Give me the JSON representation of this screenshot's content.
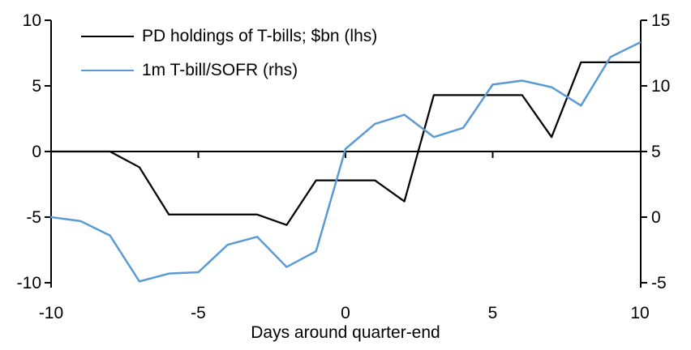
{
  "chart": {
    "background": "#ffffff",
    "axis_color": "#000000",
    "text_color": "#000000"
  },
  "chart_data": {
    "type": "line",
    "title": "",
    "xlabel": "Days around quarter-end",
    "x": [
      -10,
      -9,
      -8,
      -7,
      -6,
      -5,
      -4,
      -3,
      -2,
      -1,
      0,
      1,
      2,
      3,
      4,
      5,
      6,
      7,
      8,
      9,
      10
    ],
    "series": [
      {
        "name": "PD holdings of T-bills; $bn (lhs)",
        "axis": "left",
        "color": "#000000",
        "values": [
          0,
          0,
          0,
          -1.2,
          -4.8,
          -4.8,
          -4.8,
          -4.8,
          -5.6,
          -2.2,
          -2.2,
          -2.2,
          -3.8,
          4.3,
          4.3,
          4.3,
          4.3,
          1.1,
          6.8,
          6.8,
          6.8
        ]
      },
      {
        "name": "1m T-bill/SOFR (rhs)",
        "axis": "right",
        "color": "#5B9BD5",
        "values": [
          0,
          -0.3,
          -1.4,
          -4.9,
          -4.3,
          -4.2,
          -2.1,
          -1.5,
          -3.8,
          -2.6,
          5.2,
          7.1,
          7.8,
          6.1,
          6.8,
          10.1,
          10.4,
          9.9,
          8.5,
          12.2,
          13.3
        ]
      }
    ],
    "x_axis": {
      "label": "Days around quarter-end",
      "ticks": [
        -10,
        -5,
        0,
        5,
        10
      ],
      "range": [
        -10,
        10
      ]
    },
    "left_axis": {
      "ticks": [
        10,
        5,
        0,
        -5,
        -10
      ],
      "range": [
        -10,
        10
      ]
    },
    "right_axis": {
      "ticks": [
        15,
        10,
        5,
        0,
        -5
      ],
      "range": [
        -5,
        15
      ]
    },
    "grid": false,
    "zero_line": true,
    "legend_position": "top-left"
  }
}
